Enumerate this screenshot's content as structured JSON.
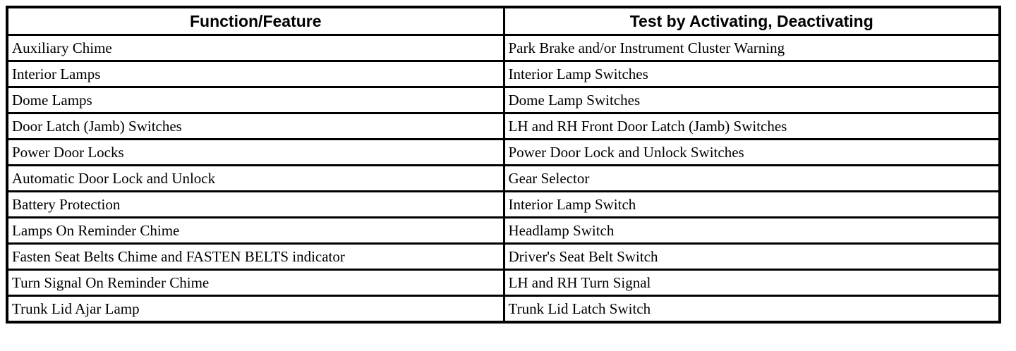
{
  "table": {
    "headers": [
      "Function/Feature",
      "Test by Activating, Deactivating"
    ],
    "rows": [
      [
        "Auxiliary Chime",
        "Park Brake and/or Instrument Cluster Warning"
      ],
      [
        "Interior Lamps",
        "Interior Lamp Switches"
      ],
      [
        "Dome Lamps",
        "Dome Lamp Switches"
      ],
      [
        "Door Latch (Jamb) Switches",
        "LH and RH Front Door Latch (Jamb) Switches"
      ],
      [
        "Power Door Locks",
        "Power Door Lock and Unlock Switches"
      ],
      [
        "Automatic Door Lock and Unlock",
        "Gear Selector"
      ],
      [
        "Battery Protection",
        "Interior Lamp Switch"
      ],
      [
        "Lamps On Reminder Chime",
        "Headlamp Switch"
      ],
      [
        "Fasten Seat Belts Chime and FASTEN BELTS indicator",
        "Driver's Seat Belt Switch"
      ],
      [
        "Turn Signal On Reminder Chime",
        "LH and RH Turn Signal"
      ],
      [
        "Trunk Lid Ajar Lamp",
        "Trunk Lid Latch Switch"
      ]
    ]
  }
}
